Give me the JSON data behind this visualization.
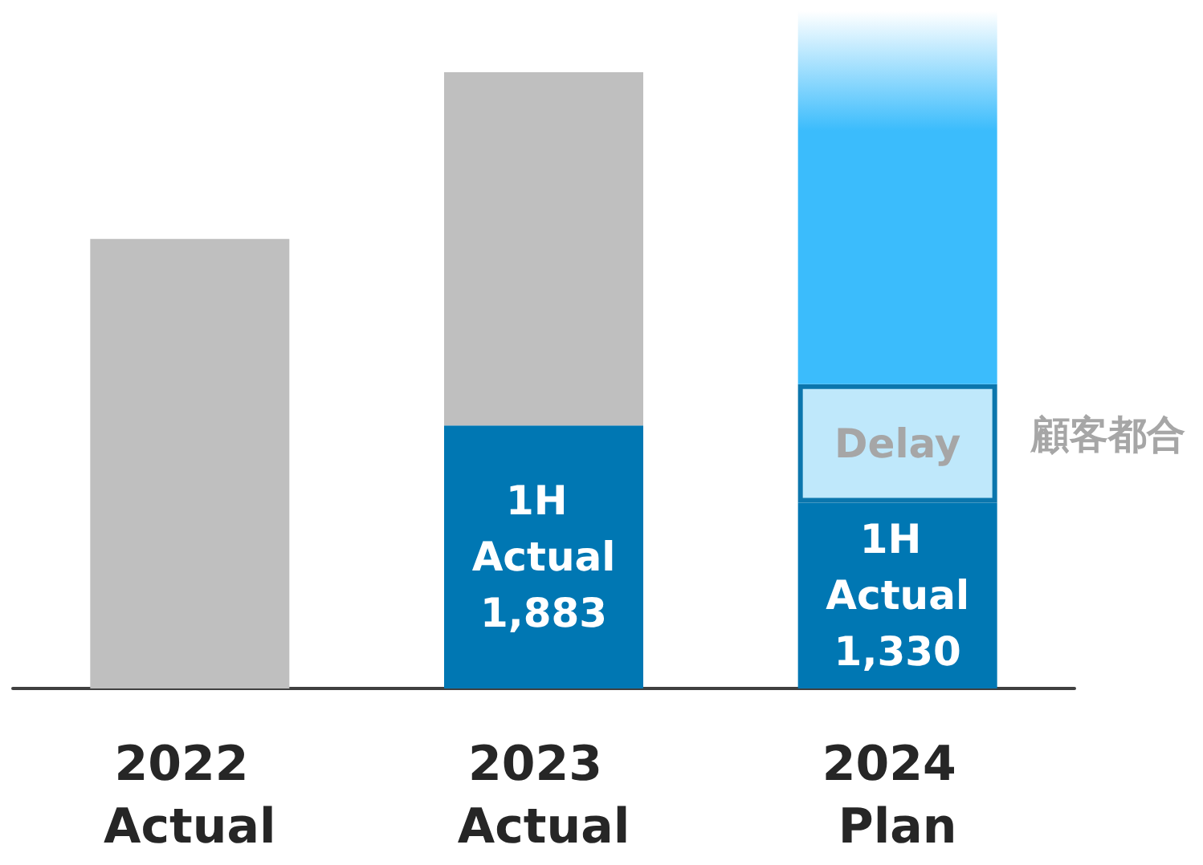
{
  "chart_data": {
    "type": "bar",
    "stacked": true,
    "categories": [
      "2022 Actual",
      "2023 Actual",
      "2024 Plan"
    ],
    "series": [
      {
        "name": "1H Actual",
        "color": "#0077b3",
        "values": [
          null,
          1883,
          1330
        ],
        "value_labels": [
          null,
          "1,883",
          "1,330"
        ]
      },
      {
        "color": "#bfbfbf",
        "values": [
          3220,
          2530,
          null
        ]
      },
      {
        "name": "Delay",
        "color": "#bfe8fb",
        "values": [
          null,
          null,
          850
        ]
      },
      {
        "color": "#3bbcfc",
        "values": [
          null,
          null,
          2670
        ]
      }
    ],
    "annotations": [
      "顧客都合"
    ],
    "tick_labels": "x",
    "legend": false,
    "grid": false
  }
}
